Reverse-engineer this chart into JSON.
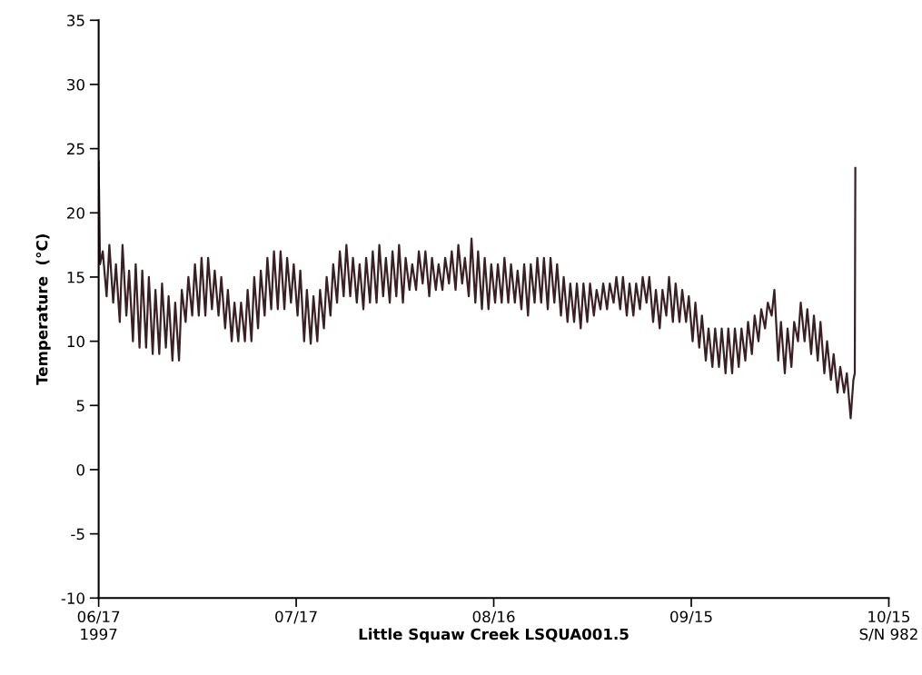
{
  "chart_data": {
    "type": "line",
    "xlabel": "Little Squaw Creek LSQUA001.5",
    "ylabel": "Temperature  (°C)",
    "annotations": [
      "1997",
      "S/N 982"
    ],
    "xlim": [
      "1997-06-17",
      "1997-10-15"
    ],
    "xticks": [
      {
        "value": "1997-06-17",
        "label": "06/17"
      },
      {
        "value": "1997-07-17",
        "label": "07/17"
      },
      {
        "value": "1997-08-16",
        "label": "08/16"
      },
      {
        "value": "1997-09-15",
        "label": "09/15"
      },
      {
        "value": "1997-10-15",
        "label": "10/15"
      }
    ],
    "ylim": [
      -10,
      35
    ],
    "yticks": [
      -10,
      -5,
      0,
      5,
      10,
      15,
      20,
      25,
      30,
      35
    ],
    "grid": false,
    "marker": "none",
    "line_style": "solid",
    "series": [
      {
        "color": "#3a1f24",
        "x": [
          "1997-06-17T00:00",
          "1997-06-17T05:00",
          "1997-06-17T15:00",
          "1997-06-18T05:00",
          "1997-06-18T15:00",
          "1997-06-19T05:00",
          "1997-06-19T15:00",
          "1997-06-20T05:00",
          "1997-06-20T15:00",
          "1997-06-21T05:00",
          "1997-06-21T15:00",
          "1997-06-22T05:00",
          "1997-06-22T15:00",
          "1997-06-23T05:00",
          "1997-06-23T15:00",
          "1997-06-24T05:00",
          "1997-06-24T15:00",
          "1997-06-25T05:00",
          "1997-06-25T15:00",
          "1997-06-26T05:00",
          "1997-06-26T15:00",
          "1997-06-27T05:00",
          "1997-06-27T15:00",
          "1997-06-28T05:00",
          "1997-06-28T15:00",
          "1997-06-29T05:00",
          "1997-06-29T15:00",
          "1997-06-30T05:00",
          "1997-06-30T15:00",
          "1997-07-01T05:00",
          "1997-07-01T15:00",
          "1997-07-02T05:00",
          "1997-07-02T15:00",
          "1997-07-03T05:00",
          "1997-07-03T15:00",
          "1997-07-04T05:00",
          "1997-07-04T15:00",
          "1997-07-05T05:00",
          "1997-07-05T15:00",
          "1997-07-06T05:00",
          "1997-07-06T15:00",
          "1997-07-07T05:00",
          "1997-07-07T15:00",
          "1997-07-08T05:00",
          "1997-07-08T15:00",
          "1997-07-09T05:00",
          "1997-07-09T15:00",
          "1997-07-10T05:00",
          "1997-07-10T15:00",
          "1997-07-11T05:00",
          "1997-07-11T15:00",
          "1997-07-12T05:00",
          "1997-07-12T15:00",
          "1997-07-13T05:00",
          "1997-07-13T15:00",
          "1997-07-14T05:00",
          "1997-07-14T15:00",
          "1997-07-15T05:00",
          "1997-07-15T15:00",
          "1997-07-16T05:00",
          "1997-07-16T15:00",
          "1997-07-17T05:00",
          "1997-07-17T15:00",
          "1997-07-18T05:00",
          "1997-07-18T15:00",
          "1997-07-19T05:00",
          "1997-07-19T15:00",
          "1997-07-20T05:00",
          "1997-07-20T15:00",
          "1997-07-21T05:00",
          "1997-07-21T15:00",
          "1997-07-22T05:00",
          "1997-07-22T15:00",
          "1997-07-23T05:00",
          "1997-07-23T15:00",
          "1997-07-24T05:00",
          "1997-07-24T15:00",
          "1997-07-25T05:00",
          "1997-07-25T15:00",
          "1997-07-26T05:00",
          "1997-07-26T15:00",
          "1997-07-27T05:00",
          "1997-07-27T15:00",
          "1997-07-28T05:00",
          "1997-07-28T15:00",
          "1997-07-29T05:00",
          "1997-07-29T15:00",
          "1997-07-30T05:00",
          "1997-07-30T15:00",
          "1997-07-31T05:00",
          "1997-07-31T15:00",
          "1997-08-01T05:00",
          "1997-08-01T15:00",
          "1997-08-02T05:00",
          "1997-08-02T15:00",
          "1997-08-03T05:00",
          "1997-08-03T15:00",
          "1997-08-04T05:00",
          "1997-08-04T15:00",
          "1997-08-05T05:00",
          "1997-08-05T15:00",
          "1997-08-06T05:00",
          "1997-08-06T15:00",
          "1997-08-07T05:00",
          "1997-08-07T15:00",
          "1997-08-08T05:00",
          "1997-08-08T15:00",
          "1997-08-09T05:00",
          "1997-08-09T15:00",
          "1997-08-10T05:00",
          "1997-08-10T15:00",
          "1997-08-11T05:00",
          "1997-08-11T15:00",
          "1997-08-12T05:00",
          "1997-08-12T15:00",
          "1997-08-13T05:00",
          "1997-08-13T15:00",
          "1997-08-14T05:00",
          "1997-08-14T15:00",
          "1997-08-15T05:00",
          "1997-08-15T15:00",
          "1997-08-16T05:00",
          "1997-08-16T15:00",
          "1997-08-17T05:00",
          "1997-08-17T15:00",
          "1997-08-18T05:00",
          "1997-08-18T15:00",
          "1997-08-19T05:00",
          "1997-08-19T15:00",
          "1997-08-20T05:00",
          "1997-08-20T15:00",
          "1997-08-21T05:00",
          "1997-08-21T15:00",
          "1997-08-22T05:00",
          "1997-08-22T15:00",
          "1997-08-23T05:00",
          "1997-08-23T15:00",
          "1997-08-24T05:00",
          "1997-08-24T15:00",
          "1997-08-25T05:00",
          "1997-08-25T15:00",
          "1997-08-26T05:00",
          "1997-08-26T15:00",
          "1997-08-27T05:00",
          "1997-08-27T15:00",
          "1997-08-28T05:00",
          "1997-08-28T15:00",
          "1997-08-29T05:00",
          "1997-08-29T15:00",
          "1997-08-30T05:00",
          "1997-08-30T15:00",
          "1997-08-31T05:00",
          "1997-08-31T15:00",
          "1997-09-01T05:00",
          "1997-09-01T15:00",
          "1997-09-02T05:00",
          "1997-09-02T15:00",
          "1997-09-03T05:00",
          "1997-09-03T15:00",
          "1997-09-04T05:00",
          "1997-09-04T15:00",
          "1997-09-05T05:00",
          "1997-09-05T15:00",
          "1997-09-06T05:00",
          "1997-09-06T15:00",
          "1997-09-07T05:00",
          "1997-09-07T15:00",
          "1997-09-08T05:00",
          "1997-09-08T15:00",
          "1997-09-09T05:00",
          "1997-09-09T15:00",
          "1997-09-10T05:00",
          "1997-09-10T15:00",
          "1997-09-11T05:00",
          "1997-09-11T15:00",
          "1997-09-12T05:00",
          "1997-09-12T15:00",
          "1997-09-13T05:00",
          "1997-09-13T15:00",
          "1997-09-14T05:00",
          "1997-09-14T15:00",
          "1997-09-15T05:00",
          "1997-09-15T15:00",
          "1997-09-16T05:00",
          "1997-09-16T15:00",
          "1997-09-17T05:00",
          "1997-09-17T15:00",
          "1997-09-18T05:00",
          "1997-09-18T15:00",
          "1997-09-19T05:00",
          "1997-09-19T15:00",
          "1997-09-20T05:00",
          "1997-09-20T15:00",
          "1997-09-21T05:00",
          "1997-09-21T15:00",
          "1997-09-22T05:00",
          "1997-09-22T15:00",
          "1997-09-23T05:00",
          "1997-09-23T15:00",
          "1997-09-24T05:00",
          "1997-09-24T15:00",
          "1997-09-25T05:00",
          "1997-09-25T15:00",
          "1997-09-26T05:00",
          "1997-09-26T15:00",
          "1997-09-27T05:00",
          "1997-09-27T15:00",
          "1997-09-28T05:00",
          "1997-09-28T15:00",
          "1997-09-29T05:00",
          "1997-09-29T15:00",
          "1997-09-30T05:00",
          "1997-09-30T15:00",
          "1997-10-01T05:00",
          "1997-10-01T15:00",
          "1997-10-02T05:00",
          "1997-10-02T15:00",
          "1997-10-03T05:00",
          "1997-10-03T15:00",
          "1997-10-04T05:00",
          "1997-10-04T15:00",
          "1997-10-05T05:00",
          "1997-10-05T15:00",
          "1997-10-06T05:00",
          "1997-10-06T15:00",
          "1997-10-07T05:00",
          "1997-10-07T15:00",
          "1997-10-08T05:00",
          "1997-10-08T15:00",
          "1997-10-09T05:00",
          "1997-10-09T15:00",
          "1997-10-09T20:00",
          "1997-10-09T22:00"
        ],
        "values": [
          24,
          16,
          17,
          13.5,
          17.5,
          13,
          16,
          11.5,
          17.5,
          12,
          15.5,
          10,
          16,
          9.5,
          15.5,
          9.5,
          15,
          9,
          14,
          9,
          14.5,
          9.5,
          13.5,
          8.5,
          13,
          8.5,
          14,
          11.5,
          15,
          12,
          16,
          12,
          16.5,
          12,
          16.5,
          12.5,
          15.5,
          12,
          15,
          11,
          14,
          10,
          13,
          10,
          13,
          10,
          14,
          10,
          15,
          11,
          15.5,
          12,
          16.5,
          12.5,
          17,
          12.5,
          17,
          12.5,
          16.5,
          13,
          16,
          12,
          15.5,
          10,
          14,
          9.8,
          13.5,
          10,
          14,
          11,
          15,
          12,
          16,
          13,
          17,
          13.5,
          17.5,
          13.5,
          16.5,
          13,
          16,
          12.5,
          16.5,
          13,
          17,
          13,
          17.5,
          13.5,
          16.5,
          13,
          17,
          13.5,
          17.5,
          13,
          16.5,
          14,
          16,
          14,
          17,
          14.5,
          17,
          13.5,
          16.5,
          14,
          16,
          14,
          16.5,
          14.5,
          17,
          14,
          17.5,
          14.5,
          16.5,
          13.5,
          18,
          13,
          17,
          12.5,
          16.5,
          12.5,
          16,
          13,
          16,
          13,
          16.5,
          13,
          16,
          13,
          15.5,
          12.5,
          16,
          12,
          16,
          13,
          16.5,
          13,
          16.5,
          12.5,
          16.5,
          13,
          16,
          12,
          15,
          11.5,
          14.5,
          11.5,
          14.5,
          11,
          14.5,
          11.5,
          14.5,
          12,
          14,
          12.5,
          14.5,
          12.5,
          14.5,
          13,
          15,
          12.5,
          15,
          12,
          14.5,
          12,
          14.5,
          12.5,
          15,
          13,
          15,
          11.5,
          14,
          11,
          14,
          12,
          15,
          11.5,
          14.5,
          11.5,
          14,
          11.5,
          13.5,
          10,
          13,
          9.5,
          12,
          8.5,
          11,
          8,
          11,
          8,
          11,
          7.5,
          11,
          7.5,
          11,
          8,
          11,
          8.5,
          11.5,
          9,
          12,
          10,
          12.5,
          11,
          13,
          12,
          14,
          8.5,
          11.5,
          7.5,
          11,
          8,
          11.5,
          10,
          13,
          10,
          12.5,
          9,
          12,
          8.5,
          11.5,
          7.5,
          10,
          7,
          9,
          6,
          8,
          6,
          7.5,
          4,
          7,
          7.5,
          23.5
        ]
      }
    ]
  }
}
